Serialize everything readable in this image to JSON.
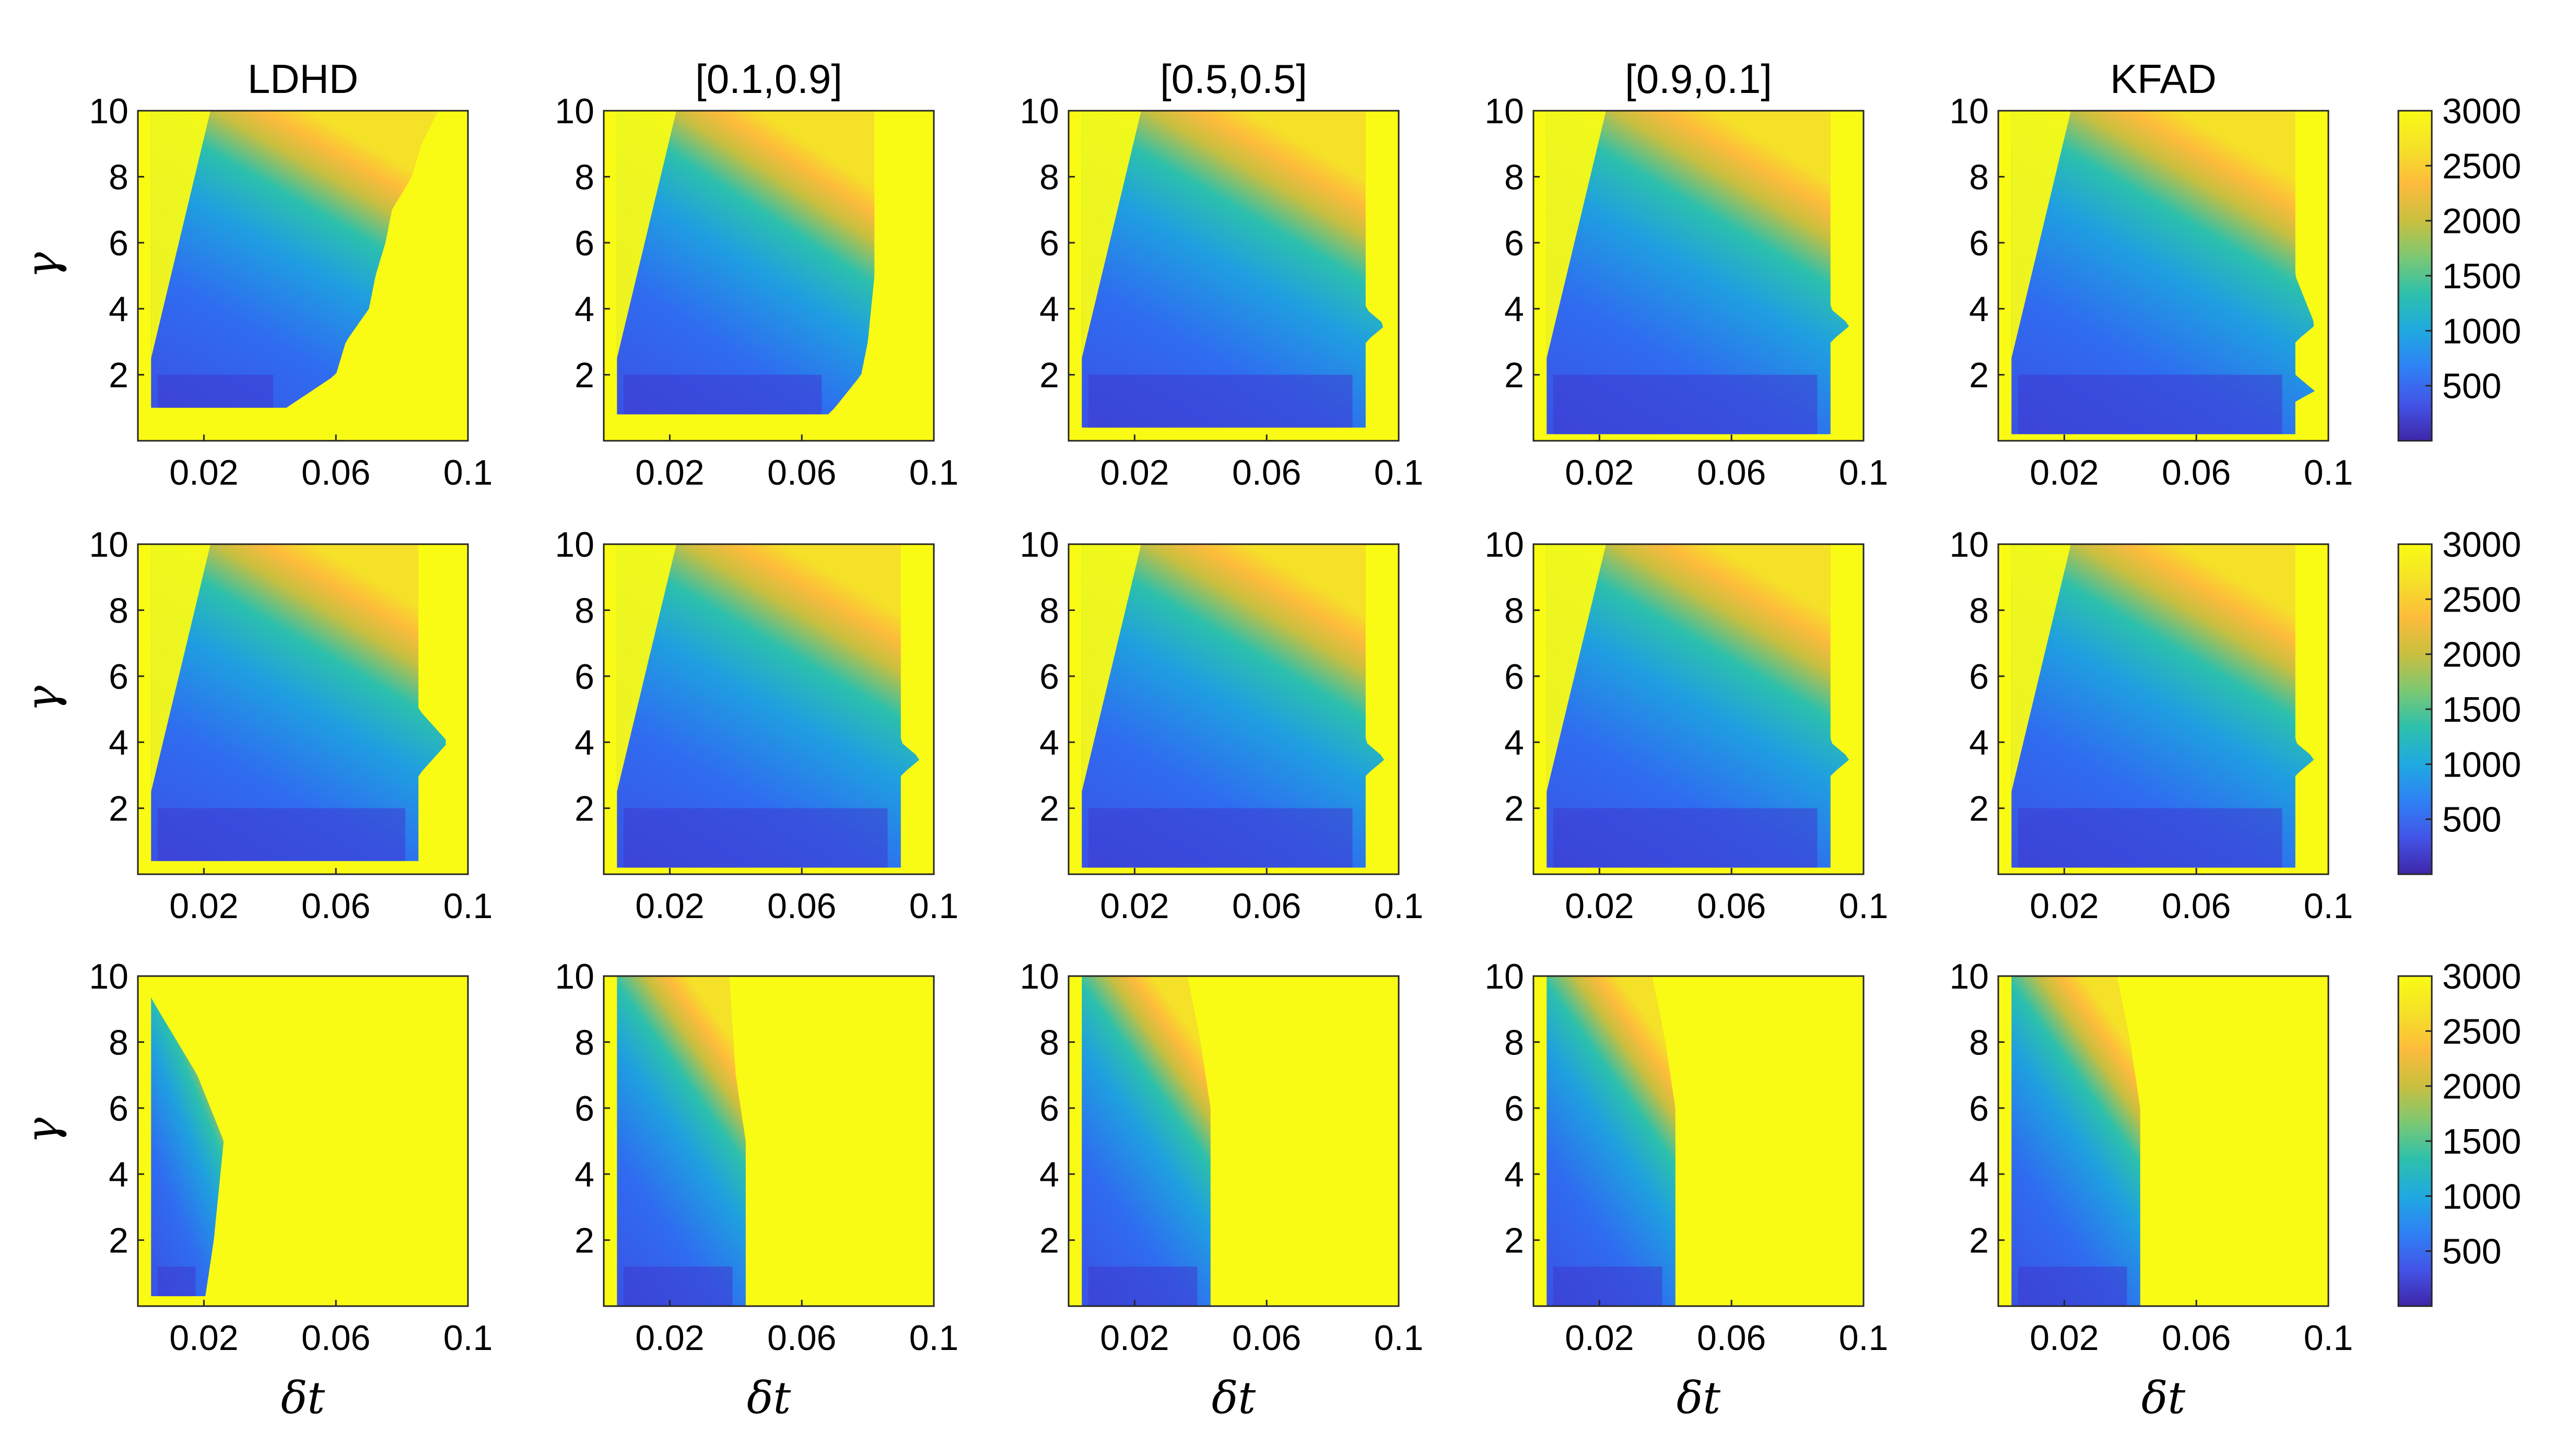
{
  "chart_data": {
    "type": "heatmap",
    "layout": "3 rows x 5 columns of heatmaps, one colorbar per row",
    "columns": [
      {
        "title": "LDHD",
        "key": "ldhd"
      },
      {
        "title": "[0.1,0.9]",
        "key": "w19"
      },
      {
        "title": "[0.5,0.5]",
        "key": "w55"
      },
      {
        "title": "[0.9,0.1]",
        "key": "w91"
      },
      {
        "title": "KFAD",
        "key": "kfad"
      }
    ],
    "xlabel": "δt",
    "ylabel": "γ",
    "xlim": [
      0,
      0.1
    ],
    "ylim": [
      0,
      10
    ],
    "x_ticks": [
      0.02,
      0.06,
      0.1
    ],
    "x_tick_labels": [
      "0.02",
      "0.06",
      "0.1"
    ],
    "y_ticks": [
      2,
      4,
      6,
      8,
      10
    ],
    "y_tick_labels": [
      "2",
      "4",
      "6",
      "8",
      "10"
    ],
    "colorbar": {
      "range": [
        0,
        3000
      ],
      "ticks": [
        500,
        1000,
        1500,
        2000,
        2500,
        3000
      ],
      "tick_labels": [
        "500",
        "1000",
        "1500",
        "2000",
        "2500",
        "3000"
      ],
      "colormap": "parula",
      "colors": [
        "#3e26a8",
        "#4354e7",
        "#2f81f5",
        "#1fa9e1",
        "#2cc0ac",
        "#7cc873",
        "#c9bf3f",
        "#fdbb3c",
        "#f5e128",
        "#f9fb15"
      ]
    },
    "rows": [
      {
        "row": 1,
        "panels": {
          "ldhd": {
            "stable_x_max": [
              [
                0,
                0.03
              ],
              [
                1,
                0.045
              ],
              [
                2,
                0.06
              ],
              [
                3,
                0.063
              ],
              [
                4,
                0.07
              ],
              [
                5,
                0.072
              ],
              [
                6,
                0.075
              ],
              [
                7,
                0.077
              ],
              [
                8,
                0.083
              ],
              [
                9,
                0.086
              ],
              [
                10,
                0.091
              ]
            ],
            "low_gamma_floor": 1.0
          },
          "w19": {
            "stable_x_max": [
              [
                0,
                0.06
              ],
              [
                1,
                0.07
              ],
              [
                2,
                0.078
              ],
              [
                3,
                0.08
              ],
              [
                4,
                0.081
              ],
              [
                5,
                0.082
              ],
              [
                10,
                0.082
              ]
            ],
            "low_gamma_floor": 0.8
          },
          "w55": {
            "stable_x_max": [
              [
                0,
                0.09
              ],
              [
                3,
                0.09
              ],
              [
                3.5,
                0.096
              ],
              [
                4,
                0.09
              ],
              [
                10,
                0.09
              ]
            ],
            "low_gamma_floor": 0.4
          },
          "w91": {
            "stable_x_max": [
              [
                0,
                0.09
              ],
              [
                3,
                0.09
              ],
              [
                3.5,
                0.096
              ],
              [
                4,
                0.09
              ],
              [
                10,
                0.09
              ]
            ],
            "low_gamma_floor": 0.2
          },
          "kfad": {
            "stable_x_max": [
              [
                0,
                0.09
              ],
              [
                1.2,
                0.09
              ],
              [
                1.5,
                0.096
              ],
              [
                2,
                0.09
              ],
              [
                3,
                0.09
              ],
              [
                3.5,
                0.096
              ],
              [
                5,
                0.09
              ],
              [
                10,
                0.09
              ]
            ],
            "low_gamma_floor": 0.2
          }
        }
      },
      {
        "row": 2,
        "panels": {
          "ldhd": {
            "stable_x_max": [
              [
                0,
                0.085
              ],
              [
                3,
                0.085
              ],
              [
                4,
                0.094
              ],
              [
                5,
                0.085
              ],
              [
                10,
                0.085
              ]
            ],
            "low_gamma_floor": 0.4
          },
          "w19": {
            "stable_x_max": [
              [
                0,
                0.09
              ],
              [
                3,
                0.09
              ],
              [
                3.5,
                0.096
              ],
              [
                4,
                0.09
              ],
              [
                10,
                0.09
              ]
            ],
            "low_gamma_floor": 0.2
          },
          "w55": {
            "stable_x_max": [
              [
                0,
                0.09
              ],
              [
                3,
                0.09
              ],
              [
                3.5,
                0.096
              ],
              [
                4,
                0.09
              ],
              [
                10,
                0.09
              ]
            ],
            "low_gamma_floor": 0.2
          },
          "w91": {
            "stable_x_max": [
              [
                0,
                0.09
              ],
              [
                3,
                0.09
              ],
              [
                3.5,
                0.096
              ],
              [
                4,
                0.09
              ],
              [
                10,
                0.09
              ]
            ],
            "low_gamma_floor": 0.2
          },
          "kfad": {
            "stable_x_max": [
              [
                0,
                0.09
              ],
              [
                3,
                0.09
              ],
              [
                3.5,
                0.096
              ],
              [
                4,
                0.09
              ],
              [
                10,
                0.09
              ]
            ],
            "low_gamma_floor": 0.2
          }
        }
      },
      {
        "row": 3,
        "panels": {
          "ldhd": {
            "stable_x_max": [
              [
                0,
                0.02
              ],
              [
                2,
                0.023
              ],
              [
                4,
                0.025
              ],
              [
                5,
                0.026
              ],
              [
                6,
                0.022
              ],
              [
                7,
                0.018
              ],
              [
                10,
                0.0
              ]
            ],
            "low_gamma_floor": 0.3
          },
          "w19": {
            "stable_x_max": [
              [
                0,
                0.043
              ],
              [
                5,
                0.043
              ],
              [
                7,
                0.04
              ],
              [
                10,
                0.038
              ]
            ],
            "low_gamma_floor": 0.0
          },
          "w55": {
            "stable_x_max": [
              [
                0,
                0.043
              ],
              [
                6,
                0.043
              ],
              [
                8,
                0.04
              ],
              [
                10,
                0.036
              ]
            ],
            "low_gamma_floor": 0.0
          },
          "w91": {
            "stable_x_max": [
              [
                0,
                0.043
              ],
              [
                6,
                0.043
              ],
              [
                8,
                0.04
              ],
              [
                10,
                0.036
              ]
            ],
            "low_gamma_floor": 0.0
          },
          "kfad": {
            "stable_x_max": [
              [
                0,
                0.043
              ],
              [
                6,
                0.043
              ],
              [
                8,
                0.04
              ],
              [
                10,
                0.036
              ]
            ],
            "low_gamma_floor": 0.0
          }
        }
      }
    ]
  }
}
